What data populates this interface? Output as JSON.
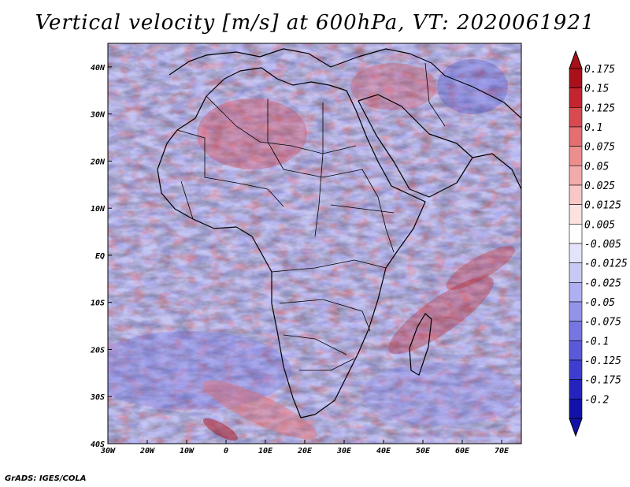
{
  "title": "Vertical velocity [m/s] at 600hPa, VT: 2020061921",
  "credit": "GrADS: IGES/COLA",
  "map": {
    "lon_range": [
      -30,
      75
    ],
    "lat_range": [
      -40,
      45
    ],
    "lon_ticks": [
      {
        "value": -30,
        "label": "30W"
      },
      {
        "value": -20,
        "label": "20W"
      },
      {
        "value": -10,
        "label": "10W"
      },
      {
        "value": 0,
        "label": "0"
      },
      {
        "value": 10,
        "label": "10E"
      },
      {
        "value": 20,
        "label": "20E"
      },
      {
        "value": 30,
        "label": "30E"
      },
      {
        "value": 40,
        "label": "40E"
      },
      {
        "value": 50,
        "label": "50E"
      },
      {
        "value": 60,
        "label": "60E"
      },
      {
        "value": 70,
        "label": "70E"
      }
    ],
    "lat_ticks": [
      {
        "value": 40,
        "label": "40N"
      },
      {
        "value": 30,
        "label": "30N"
      },
      {
        "value": 20,
        "label": "20N"
      },
      {
        "value": 10,
        "label": "10N"
      },
      {
        "value": 0,
        "label": "EQ"
      },
      {
        "value": -10,
        "label": "10S"
      },
      {
        "value": -20,
        "label": "20S"
      },
      {
        "value": -30,
        "label": "30S"
      },
      {
        "value": -40,
        "label": "40S"
      }
    ]
  },
  "colorbar": {
    "levels": [
      {
        "label": "0.175",
        "color": "#a8101a"
      },
      {
        "label": "0.15",
        "color": "#c3262e"
      },
      {
        "label": "0.125",
        "color": "#d84a4f"
      },
      {
        "label": "0.1",
        "color": "#e46e70"
      },
      {
        "label": "0.075",
        "color": "#ec8e8e"
      },
      {
        "label": "0.05",
        "color": "#f2abaa"
      },
      {
        "label": "0.025",
        "color": "#f7c8c6"
      },
      {
        "label": "0.0125",
        "color": "#fbe2e0"
      },
      {
        "label": "0.005",
        "color": "#ffffff"
      },
      {
        "label": "-0.005",
        "color": "#e3e3fb"
      },
      {
        "label": "-0.0125",
        "color": "#c9c9f6"
      },
      {
        "label": "-0.025",
        "color": "#afaff1"
      },
      {
        "label": "-0.05",
        "color": "#9393ea"
      },
      {
        "label": "-0.075",
        "color": "#7676e2"
      },
      {
        "label": "-0.1",
        "color": "#5a5ad9"
      },
      {
        "label": "-0.125",
        "color": "#3e3ece"
      },
      {
        "label": "-0.175",
        "color": "#2424bd"
      },
      {
        "label": "-0.2",
        "color": "#1212a8"
      }
    ],
    "top_arrow_color": "#a8101a",
    "bottom_arrow_color": "#1212a8"
  }
}
